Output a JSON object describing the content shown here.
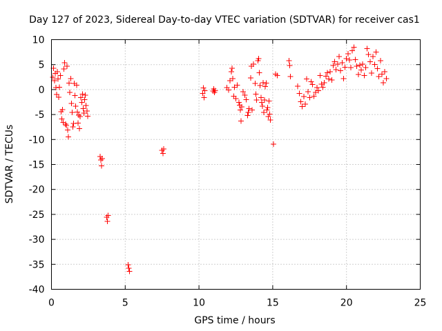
{
  "chart_data": {
    "type": "scatter",
    "title": "Day 127 of 2023, Sidereal Day-to-day VTEC variation (SDTVAR) for receiver cas1",
    "xlabel": "GPS time / hours",
    "ylabel": "SDTVAR / TECUs",
    "xlim": [
      0,
      25
    ],
    "ylim": [
      -40,
      10
    ],
    "xticks": [
      0,
      5,
      10,
      15,
      20,
      25
    ],
    "yticks": [
      -40,
      -35,
      -30,
      -25,
      -20,
      -15,
      -10,
      -5,
      0,
      5,
      10
    ],
    "grid": true,
    "marker": "+",
    "color": "#ff0000",
    "series": [
      {
        "name": "SDTVAR",
        "points": [
          [
            0.1,
            2.5
          ],
          [
            0.15,
            4.3
          ],
          [
            0.2,
            1.8
          ],
          [
            0.25,
            3.2
          ],
          [
            0.3,
            0.4
          ],
          [
            0.35,
            -1.0
          ],
          [
            0.4,
            3.6
          ],
          [
            0.45,
            2.1
          ],
          [
            0.5,
            -1.5
          ],
          [
            0.55,
            0.5
          ],
          [
            0.6,
            2.8
          ],
          [
            0.65,
            -4.4
          ],
          [
            0.7,
            -5.9
          ],
          [
            0.75,
            -4.0
          ],
          [
            0.8,
            -6.6
          ],
          [
            0.85,
            4.1
          ],
          [
            0.9,
            5.4
          ],
          [
            0.95,
            -6.9
          ],
          [
            1.0,
            -7.2
          ],
          [
            1.05,
            4.7
          ],
          [
            1.1,
            -8.1
          ],
          [
            1.15,
            -9.5
          ],
          [
            1.2,
            1.3
          ],
          [
            1.25,
            -0.6
          ],
          [
            1.3,
            2.2
          ],
          [
            1.35,
            -2.8
          ],
          [
            1.4,
            -4.6
          ],
          [
            1.45,
            -7.5
          ],
          [
            1.5,
            -6.8
          ],
          [
            1.55,
            1.2
          ],
          [
            1.6,
            -1.2
          ],
          [
            1.65,
            -3.3
          ],
          [
            1.7,
            0.9
          ],
          [
            1.75,
            -4.5
          ],
          [
            1.8,
            -6.7
          ],
          [
            1.85,
            -5.1
          ],
          [
            1.9,
            -7.8
          ],
          [
            1.95,
            -5.4
          ],
          [
            2.0,
            -1.6
          ],
          [
            2.05,
            -2.6
          ],
          [
            2.1,
            -0.9
          ],
          [
            2.15,
            -3.8
          ],
          [
            2.2,
            -4.7
          ],
          [
            2.25,
            -2.0
          ],
          [
            2.3,
            -1.1
          ],
          [
            2.35,
            -3.2
          ],
          [
            2.4,
            -4.3
          ],
          [
            2.45,
            -5.3
          ],
          [
            3.3,
            -13.4
          ],
          [
            3.35,
            -14.1
          ],
          [
            3.4,
            -15.3
          ],
          [
            3.45,
            -13.8
          ],
          [
            3.75,
            -25.6
          ],
          [
            3.8,
            -26.4
          ],
          [
            3.85,
            -25.2
          ],
          [
            5.2,
            -35.1
          ],
          [
            5.25,
            -35.8
          ],
          [
            5.3,
            -36.4
          ],
          [
            7.5,
            -12.2
          ],
          [
            7.55,
            -12.8
          ],
          [
            7.6,
            -11.9
          ],
          [
            10.25,
            -0.8
          ],
          [
            10.3,
            0.3
          ],
          [
            10.35,
            -1.6
          ],
          [
            10.4,
            -0.2
          ],
          [
            10.95,
            -0.3
          ],
          [
            11.0,
            0.1
          ],
          [
            11.05,
            -0.6
          ],
          [
            11.1,
            -0.2
          ],
          [
            11.9,
            0.4
          ],
          [
            12.0,
            -0.1
          ],
          [
            12.1,
            1.8
          ],
          [
            12.2,
            3.6
          ],
          [
            12.25,
            4.3
          ],
          [
            12.3,
            2.2
          ],
          [
            12.35,
            -1.3
          ],
          [
            12.4,
            0.5
          ],
          [
            12.5,
            -1.8
          ],
          [
            12.6,
            0.9
          ],
          [
            12.7,
            -2.6
          ],
          [
            12.75,
            -3.1
          ],
          [
            12.8,
            -4.1
          ],
          [
            12.85,
            -6.3
          ],
          [
            12.9,
            -3.5
          ],
          [
            13.0,
            -0.4
          ],
          [
            13.1,
            -1.1
          ],
          [
            13.2,
            -2.0
          ],
          [
            13.3,
            -5.2
          ],
          [
            13.35,
            -4.6
          ],
          [
            13.4,
            -3.8
          ],
          [
            13.5,
            2.3
          ],
          [
            13.55,
            4.7
          ],
          [
            13.6,
            -4.1
          ],
          [
            13.7,
            5.1
          ],
          [
            13.8,
            1.2
          ],
          [
            13.85,
            -0.9
          ],
          [
            13.9,
            -2.1
          ],
          [
            14.0,
            5.8
          ],
          [
            14.05,
            6.2
          ],
          [
            14.1,
            3.4
          ],
          [
            14.15,
            0.8
          ],
          [
            14.2,
            -1.6
          ],
          [
            14.25,
            -2.6
          ],
          [
            14.3,
            -3.3
          ],
          [
            14.35,
            1.4
          ],
          [
            14.4,
            -4.6
          ],
          [
            14.45,
            -2.1
          ],
          [
            14.5,
            0.6
          ],
          [
            14.55,
            1.3
          ],
          [
            14.6,
            -4.1
          ],
          [
            14.65,
            -3.6
          ],
          [
            14.7,
            -5.4
          ],
          [
            14.75,
            -2.3
          ],
          [
            14.8,
            -4.9
          ],
          [
            14.85,
            -6.1
          ],
          [
            15.05,
            -10.9
          ],
          [
            15.2,
            3.1
          ],
          [
            15.3,
            2.8
          ],
          [
            16.1,
            5.8
          ],
          [
            16.15,
            4.8
          ],
          [
            16.2,
            2.6
          ],
          [
            16.7,
            0.7
          ],
          [
            16.8,
            -0.8
          ],
          [
            16.9,
            -2.4
          ],
          [
            17.0,
            -3.4
          ],
          [
            17.1,
            -1.4
          ],
          [
            17.2,
            -2.9
          ],
          [
            17.3,
            2.1
          ],
          [
            17.4,
            -0.4
          ],
          [
            17.5,
            -1.6
          ],
          [
            17.6,
            1.6
          ],
          [
            17.7,
            1.0
          ],
          [
            17.8,
            -1.3
          ],
          [
            17.9,
            -0.6
          ],
          [
            18.0,
            0.4
          ],
          [
            18.1,
            -0.2
          ],
          [
            18.2,
            2.8
          ],
          [
            18.3,
            1.1
          ],
          [
            18.4,
            0.5
          ],
          [
            18.5,
            1.4
          ],
          [
            18.6,
            2.7
          ],
          [
            18.7,
            3.4
          ],
          [
            18.8,
            2.1
          ],
          [
            18.9,
            3.6
          ],
          [
            19.0,
            1.9
          ],
          [
            19.1,
            4.8
          ],
          [
            19.2,
            5.6
          ],
          [
            19.3,
            4.0
          ],
          [
            19.4,
            5.1
          ],
          [
            19.5,
            6.6
          ],
          [
            19.6,
            3.8
          ],
          [
            19.7,
            5.4
          ],
          [
            19.8,
            2.2
          ],
          [
            19.9,
            4.5
          ],
          [
            20.0,
            6.2
          ],
          [
            20.1,
            7.2
          ],
          [
            20.2,
            5.9
          ],
          [
            20.3,
            4.4
          ],
          [
            20.4,
            7.8
          ],
          [
            20.5,
            8.5
          ],
          [
            20.6,
            6.0
          ],
          [
            20.7,
            4.7
          ],
          [
            20.8,
            3.0
          ],
          [
            20.9,
            4.9
          ],
          [
            21.0,
            3.9
          ],
          [
            21.1,
            5.1
          ],
          [
            21.2,
            2.8
          ],
          [
            21.3,
            4.4
          ],
          [
            21.4,
            8.2
          ],
          [
            21.5,
            7.0
          ],
          [
            21.6,
            5.6
          ],
          [
            21.7,
            3.3
          ],
          [
            21.8,
            6.6
          ],
          [
            21.9,
            5.0
          ],
          [
            22.0,
            7.5
          ],
          [
            22.1,
            4.2
          ],
          [
            22.2,
            2.6
          ],
          [
            22.3,
            5.8
          ],
          [
            22.4,
            3.1
          ],
          [
            22.5,
            1.4
          ],
          [
            22.6,
            3.6
          ],
          [
            22.7,
            2.2
          ]
        ]
      }
    ]
  }
}
